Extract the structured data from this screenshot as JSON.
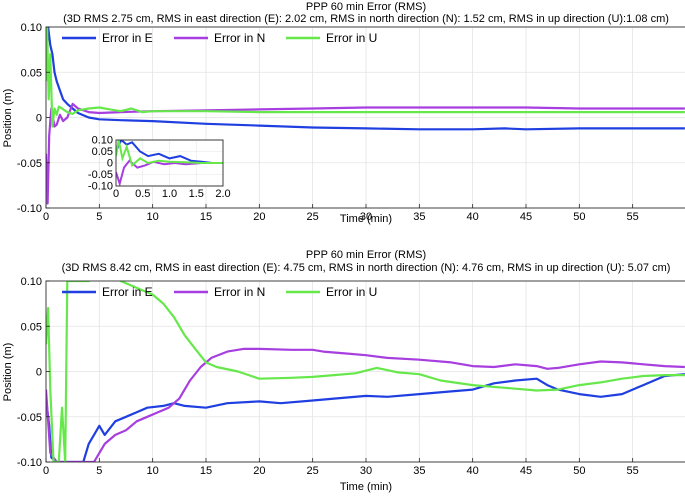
{
  "chart_data": [
    {
      "type": "line",
      "title": "PPP 60 min Error (RMS)",
      "subtitle": "(3D RMS 2.75 cm, RMS in east direction (E): 2.02 cm, RMS in north direction (N): 1.52 cm, RMS in up direction (U):1.08 cm)",
      "xlabel": "Time (min)",
      "ylabel": "Position (m)",
      "xlim": [
        0,
        60
      ],
      "ylim": [
        -0.1,
        0.1
      ],
      "xticks": [
        "0",
        "5",
        "10",
        "15",
        "20",
        "25",
        "30",
        "35",
        "40",
        "45",
        "50",
        "55"
      ],
      "yticks": [
        "0.10",
        "0.05",
        "0",
        "-0.05",
        "-0.10"
      ],
      "grid": true,
      "legend": "top, horizontal",
      "series": [
        {
          "name": "Error in E",
          "color": "#1f3fe0",
          "points": [
            [
              0,
              0.06
            ],
            [
              0.2,
              0.1
            ],
            [
              0.4,
              0.08
            ],
            [
              0.6,
              0.07
            ],
            [
              0.8,
              0.05
            ],
            [
              1.0,
              0.04
            ],
            [
              1.3,
              0.03
            ],
            [
              1.6,
              0.02
            ],
            [
              2.0,
              0.015
            ],
            [
              2.5,
              0.01
            ],
            [
              3.0,
              0.005
            ],
            [
              4.0,
              0.0
            ],
            [
              5.0,
              -0.002
            ],
            [
              7.0,
              -0.003
            ],
            [
              10.0,
              -0.004
            ],
            [
              15.0,
              -0.007
            ],
            [
              20.0,
              -0.009
            ],
            [
              25.0,
              -0.011
            ],
            [
              30.0,
              -0.012
            ],
            [
              35.0,
              -0.013
            ],
            [
              40.0,
              -0.013
            ],
            [
              43.0,
              -0.012
            ],
            [
              45.0,
              -0.013
            ],
            [
              50.0,
              -0.012
            ],
            [
              55.0,
              -0.012
            ],
            [
              59.9,
              -0.012
            ]
          ]
        },
        {
          "name": "Error in N",
          "color": "#a73ee0",
          "points": [
            [
              0,
              -0.04
            ],
            [
              0.15,
              -0.095
            ],
            [
              0.3,
              -0.02
            ],
            [
              0.5,
              0.01
            ],
            [
              0.8,
              -0.01
            ],
            [
              1.0,
              -0.008
            ],
            [
              1.3,
              0.003
            ],
            [
              1.6,
              -0.004
            ],
            [
              2.0,
              0.0
            ],
            [
              2.5,
              0.015
            ],
            [
              3.0,
              0.01
            ],
            [
              4.0,
              0.006
            ],
            [
              5.0,
              0.005
            ],
            [
              7.0,
              0.006
            ],
            [
              10.0,
              0.007
            ],
            [
              15.0,
              0.008
            ],
            [
              20.0,
              0.009
            ],
            [
              25.0,
              0.01
            ],
            [
              30.0,
              0.011
            ],
            [
              35.0,
              0.011
            ],
            [
              40.0,
              0.011
            ],
            [
              45.0,
              0.011
            ],
            [
              50.0,
              0.01
            ],
            [
              55.0,
              0.01
            ],
            [
              59.9,
              0.01
            ]
          ]
        },
        {
          "name": "Error in U",
          "color": "#66e84a",
          "points": [
            [
              0,
              0.04
            ],
            [
              0.1,
              0.1
            ],
            [
              0.25,
              0.02
            ],
            [
              0.4,
              0.07
            ],
            [
              0.6,
              -0.01
            ],
            [
              0.8,
              0.01
            ],
            [
              1.0,
              0.003
            ],
            [
              1.2,
              0.012
            ],
            [
              1.5,
              0.01
            ],
            [
              2.0,
              0.006
            ],
            [
              2.5,
              0.004
            ],
            [
              3.0,
              0.008
            ],
            [
              4.0,
              0.01
            ],
            [
              5.0,
              0.011
            ],
            [
              6.0,
              0.009
            ],
            [
              7.0,
              0.007
            ],
            [
              8.0,
              0.01
            ],
            [
              9.0,
              0.006
            ],
            [
              10.0,
              0.007
            ],
            [
              15.0,
              0.007
            ],
            [
              20.0,
              0.006
            ],
            [
              25.0,
              0.006
            ],
            [
              30.0,
              0.006
            ],
            [
              35.0,
              0.006
            ],
            [
              40.0,
              0.006
            ],
            [
              45.0,
              0.006
            ],
            [
              50.0,
              0.006
            ],
            [
              55.0,
              0.006
            ],
            [
              59.9,
              0.006
            ]
          ]
        }
      ],
      "inset": {
        "xlim": [
          0,
          2
        ],
        "ylim": [
          -0.1,
          0.1
        ],
        "xticks": [
          "0",
          "0.5",
          "1.0",
          "1.5",
          "2.0"
        ],
        "yticks": [
          "0.10",
          "0.05",
          "0",
          "-0.05",
          "-0.10"
        ],
        "series": [
          {
            "name": "Error in E",
            "color": "#1f3fe0",
            "points": [
              [
                0,
                0.05
              ],
              [
                0.1,
                0.1
              ],
              [
                0.2,
                0.08
              ],
              [
                0.3,
                0.09
              ],
              [
                0.45,
                0.05
              ],
              [
                0.6,
                0.03
              ],
              [
                0.8,
                0.04
              ],
              [
                1.0,
                0.02
              ],
              [
                1.2,
                0.03
              ],
              [
                1.4,
                0.01
              ],
              [
                1.6,
                0.005
              ],
              [
                1.8,
                0.0
              ],
              [
                2.0,
                0.0
              ]
            ]
          },
          {
            "name": "Error in N",
            "color": "#a73ee0",
            "points": [
              [
                0,
                -0.04
              ],
              [
                0.07,
                -0.09
              ],
              [
                0.15,
                -0.02
              ],
              [
                0.25,
                0.01
              ],
              [
                0.4,
                -0.02
              ],
              [
                0.55,
                -0.01
              ],
              [
                0.7,
                0.005
              ],
              [
                0.9,
                -0.005
              ],
              [
                1.1,
                0.0
              ],
              [
                1.3,
                -0.005
              ],
              [
                1.6,
                0.0
              ],
              [
                2.0,
                0.0
              ]
            ]
          },
          {
            "name": "Error in U",
            "color": "#66e84a",
            "points": [
              [
                0,
                0.03
              ],
              [
                0.05,
                0.1
              ],
              [
                0.12,
                0.02
              ],
              [
                0.2,
                0.07
              ],
              [
                0.3,
                -0.01
              ],
              [
                0.45,
                0.02
              ],
              [
                0.6,
                0.0
              ],
              [
                0.8,
                0.01
              ],
              [
                1.0,
                0.005
              ],
              [
                1.3,
                0.003
              ],
              [
                1.6,
                0.0
              ],
              [
                2.0,
                0.0
              ]
            ]
          }
        ]
      }
    },
    {
      "type": "line",
      "title": "PPP 60 min Error (RMS)",
      "subtitle": "(3D RMS 8.42 cm, RMS in east direction (E): 4.75 cm, RMS in north direction (N): 4.76 cm, RMS in up direction (U): 5.07 cm)",
      "xlabel": "Time (min)",
      "ylabel": "Position (m)",
      "xlim": [
        0,
        60
      ],
      "ylim": [
        -0.1,
        0.1
      ],
      "xticks": [
        "0",
        "5",
        "10",
        "15",
        "20",
        "25",
        "30",
        "35",
        "40",
        "45",
        "50",
        "55"
      ],
      "yticks": [
        "0.10",
        "0.05",
        "0",
        "-0.05",
        "-0.10"
      ],
      "grid": true,
      "legend": "top, horizontal",
      "series": [
        {
          "name": "Error in E",
          "color": "#1f3fe0",
          "points": [
            [
              0,
              -0.03
            ],
            [
              0.3,
              -0.06
            ],
            [
              0.5,
              -0.095
            ],
            [
              1.0,
              -0.1
            ],
            [
              1.5,
              -0.1
            ],
            [
              2.5,
              -0.1
            ],
            [
              3.5,
              -0.1
            ],
            [
              4.0,
              -0.08
            ],
            [
              4.5,
              -0.07
            ],
            [
              5.0,
              -0.06
            ],
            [
              5.5,
              -0.07
            ],
            [
              6.5,
              -0.055
            ],
            [
              7.5,
              -0.05
            ],
            [
              8.5,
              -0.045
            ],
            [
              9.5,
              -0.04
            ],
            [
              11.0,
              -0.038
            ],
            [
              12.0,
              -0.035
            ],
            [
              13.0,
              -0.038
            ],
            [
              15.0,
              -0.04
            ],
            [
              17.0,
              -0.035
            ],
            [
              20.0,
              -0.033
            ],
            [
              22.0,
              -0.035
            ],
            [
              25.0,
              -0.032
            ],
            [
              27.0,
              -0.03
            ],
            [
              30.0,
              -0.027
            ],
            [
              32.0,
              -0.028
            ],
            [
              35.0,
              -0.025
            ],
            [
              38.0,
              -0.022
            ],
            [
              40.0,
              -0.02
            ],
            [
              42.0,
              -0.013
            ],
            [
              44.0,
              -0.01
            ],
            [
              46.0,
              -0.008
            ],
            [
              47.0,
              -0.015
            ],
            [
              48.0,
              -0.02
            ],
            [
              50.0,
              -0.025
            ],
            [
              52.0,
              -0.028
            ],
            [
              54.0,
              -0.025
            ],
            [
              56.0,
              -0.015
            ],
            [
              58.0,
              -0.005
            ],
            [
              59.9,
              -0.003
            ]
          ]
        },
        {
          "name": "Error in N",
          "color": "#a73ee0",
          "points": [
            [
              0,
              -0.02
            ],
            [
              0.4,
              -0.09
            ],
            [
              1.0,
              -0.1
            ],
            [
              3.0,
              -0.1
            ],
            [
              4.5,
              -0.1
            ],
            [
              5.5,
              -0.08
            ],
            [
              6.5,
              -0.07
            ],
            [
              7.5,
              -0.065
            ],
            [
              8.5,
              -0.055
            ],
            [
              9.5,
              -0.05
            ],
            [
              10.5,
              -0.045
            ],
            [
              11.5,
              -0.04
            ],
            [
              12.5,
              -0.03
            ],
            [
              13.5,
              -0.01
            ],
            [
              14.5,
              0.005
            ],
            [
              15.5,
              0.015
            ],
            [
              17.0,
              0.022
            ],
            [
              18.5,
              0.025
            ],
            [
              20.0,
              0.025
            ],
            [
              23.0,
              0.024
            ],
            [
              25.0,
              0.024
            ],
            [
              26.0,
              0.022
            ],
            [
              28.0,
              0.02
            ],
            [
              30.0,
              0.018
            ],
            [
              32.0,
              0.015
            ],
            [
              35.0,
              0.013
            ],
            [
              38.0,
              0.01
            ],
            [
              40.0,
              0.006
            ],
            [
              42.0,
              0.005
            ],
            [
              44.0,
              0.008
            ],
            [
              46.0,
              0.006
            ],
            [
              47.0,
              0.003
            ],
            [
              48.0,
              0.004
            ],
            [
              50.0,
              0.008
            ],
            [
              52.0,
              0.011
            ],
            [
              54.0,
              0.01
            ],
            [
              56.0,
              0.008
            ],
            [
              58.0,
              0.006
            ],
            [
              59.9,
              0.005
            ]
          ]
        },
        {
          "name": "Error in U",
          "color": "#66e84a",
          "points": [
            [
              0,
              0.03
            ],
            [
              0.2,
              0.07
            ],
            [
              0.4,
              -0.02
            ],
            [
              0.7,
              -0.1
            ],
            [
              1.2,
              -0.1
            ],
            [
              1.5,
              -0.04
            ],
            [
              1.8,
              -0.1
            ],
            [
              2.0,
              0.1
            ],
            [
              2.3,
              0.1
            ],
            [
              4.0,
              0.1
            ],
            [
              6.0,
              0.11
            ],
            [
              7.0,
              0.1
            ],
            [
              8.0,
              0.095
            ],
            [
              9.0,
              0.09
            ],
            [
              10.0,
              0.085
            ],
            [
              11.0,
              0.075
            ],
            [
              12.0,
              0.06
            ],
            [
              13.0,
              0.04
            ],
            [
              14.0,
              0.025
            ],
            [
              15.0,
              0.01
            ],
            [
              16.0,
              0.005
            ],
            [
              18.0,
              0.0
            ],
            [
              20.0,
              -0.008
            ],
            [
              23.0,
              -0.007
            ],
            [
              25.0,
              -0.006
            ],
            [
              27.0,
              -0.004
            ],
            [
              29.0,
              -0.002
            ],
            [
              31.0,
              0.004
            ],
            [
              33.0,
              -0.001
            ],
            [
              35.0,
              -0.003
            ],
            [
              37.0,
              -0.01
            ],
            [
              40.0,
              -0.015
            ],
            [
              43.0,
              -0.018
            ],
            [
              46.0,
              -0.021
            ],
            [
              48.0,
              -0.02
            ],
            [
              50.0,
              -0.015
            ],
            [
              52.0,
              -0.012
            ],
            [
              54.0,
              -0.008
            ],
            [
              56.0,
              -0.005
            ],
            [
              58.0,
              -0.004
            ],
            [
              59.9,
              -0.004
            ]
          ]
        }
      ]
    }
  ]
}
